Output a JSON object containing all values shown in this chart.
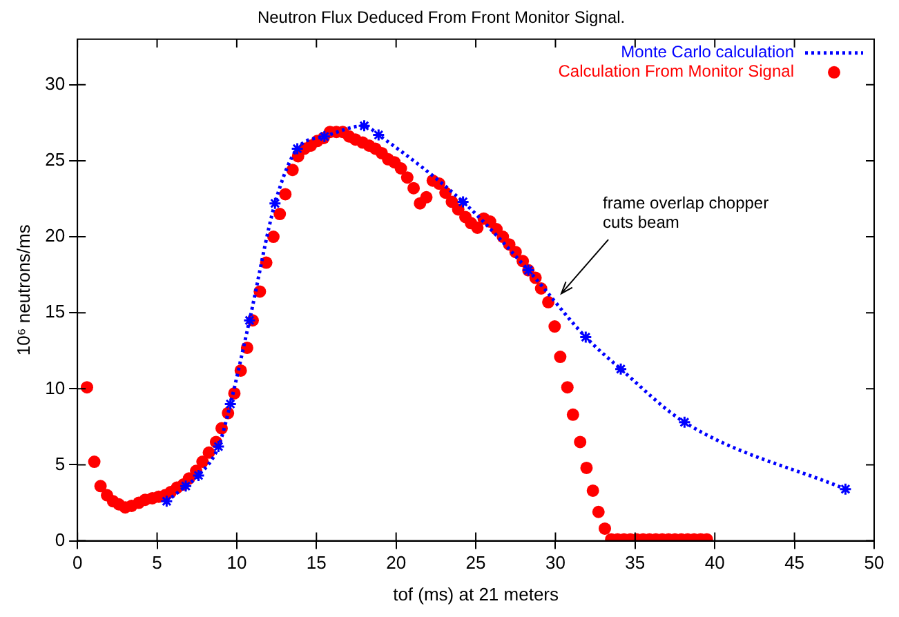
{
  "chart_data": {
    "type": "line",
    "title": "Neutron Flux Deduced From Front Monitor Signal.",
    "xlabel": "tof (ms) at 21 meters",
    "ylabel": "10⁶ neutrons/ms",
    "xlim": [
      0,
      50
    ],
    "xticks": [
      0,
      5,
      10,
      15,
      20,
      25,
      30,
      35,
      40,
      45,
      50
    ],
    "ylim": [
      0,
      33
    ],
    "yticks": [
      0,
      5,
      10,
      15,
      20,
      25,
      30
    ],
    "grid": false,
    "legend": "top right",
    "annotations": [
      {
        "text": "frame overlap chopper cuts beam",
        "x": 30.2,
        "y": 16.0
      }
    ],
    "series": [
      {
        "name": "Monte Carlo calculation",
        "type": "line",
        "color": "#0000ff",
        "marker": "cross",
        "line_style": "dotted",
        "x": [
          5.6,
          6.8,
          7.6,
          8.85,
          9.6,
          10.8,
          12.4,
          13.8,
          15.5,
          18.0,
          18.9,
          24.2,
          28.3,
          31.9,
          34.1,
          38.1,
          48.2
        ],
        "values": [
          2.6,
          3.6,
          4.3,
          6.2,
          9.0,
          14.5,
          22.2,
          25.8,
          26.6,
          27.3,
          26.7,
          22.3,
          17.8,
          13.4,
          11.3,
          7.8,
          3.4
        ]
      },
      {
        "name": "Calculation From Monitor Signal",
        "type": "scatter",
        "color": "#ff0000",
        "marker": "circle",
        "x": [
          0.6,
          1.06,
          1.45,
          1.86,
          2.24,
          2.6,
          3.0,
          3.4,
          3.85,
          4.25,
          4.7,
          5.1,
          5.5,
          5.85,
          6.25,
          6.65,
          7.0,
          7.45,
          7.85,
          8.25,
          8.7,
          9.05,
          9.45,
          9.85,
          10.25,
          10.65,
          11.0,
          11.45,
          11.85,
          12.3,
          12.7,
          13.05,
          13.5,
          13.85,
          14.25,
          14.65,
          15.05,
          15.45,
          15.85,
          16.25,
          16.65,
          17.05,
          17.45,
          17.9,
          18.3,
          18.7,
          19.1,
          19.5,
          19.9,
          20.3,
          20.7,
          21.1,
          21.5,
          21.9,
          22.3,
          22.7,
          23.1,
          23.5,
          23.9,
          24.35,
          24.7,
          25.1,
          25.5,
          25.9,
          26.3,
          26.7,
          27.1,
          27.5,
          27.95,
          28.3,
          28.75,
          29.1,
          29.55,
          29.95,
          30.3,
          30.75,
          31.1,
          31.55,
          31.95,
          32.35,
          32.7,
          33.1,
          33.5,
          33.9,
          34.3,
          34.7,
          35.1,
          35.5,
          35.9,
          36.3,
          36.7,
          37.1,
          37.5,
          37.9,
          38.3,
          38.7,
          39.1,
          39.5
        ],
        "values": [
          10.1,
          5.2,
          3.6,
          3.0,
          2.6,
          2.4,
          2.2,
          2.3,
          2.5,
          2.7,
          2.8,
          2.9,
          3.0,
          3.2,
          3.5,
          3.7,
          4.1,
          4.6,
          5.2,
          5.8,
          6.5,
          7.4,
          8.4,
          9.7,
          11.2,
          12.7,
          14.5,
          16.4,
          18.3,
          20.0,
          21.5,
          22.8,
          24.4,
          25.3,
          25.8,
          26.0,
          26.3,
          26.5,
          26.9,
          26.9,
          26.9,
          26.6,
          26.4,
          26.2,
          26.0,
          25.8,
          25.5,
          25.1,
          24.9,
          24.5,
          23.9,
          23.2,
          22.2,
          22.6,
          23.7,
          23.5,
          22.9,
          22.3,
          21.8,
          21.3,
          20.9,
          20.6,
          21.2,
          21.0,
          20.5,
          20.0,
          19.5,
          19.0,
          18.4,
          17.8,
          17.3,
          16.6,
          15.7,
          14.1,
          12.1,
          10.1,
          8.3,
          6.5,
          4.8,
          3.3,
          1.9,
          0.8,
          0.1,
          0.1,
          0.1,
          0.1,
          0.1,
          0.1,
          0.1,
          0.1,
          0.1,
          0.1,
          0.1,
          0.1,
          0.1,
          0.1,
          0.1,
          0.1
        ]
      }
    ]
  }
}
